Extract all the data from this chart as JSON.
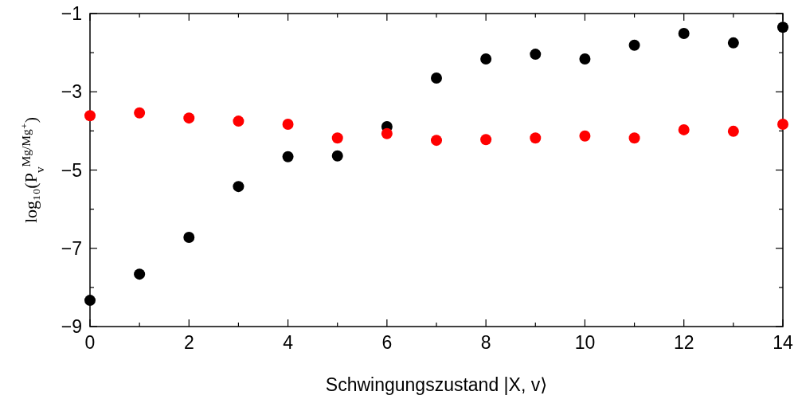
{
  "chart_data": {
    "type": "scatter",
    "xlabel": "Schwingungszustand |X, v⟩",
    "ylabel": "log₁₀(P$_{v}$$^{Mg/Mg⁺}$)",
    "x": [
      0,
      1,
      2,
      3,
      4,
      5,
      6,
      7,
      8,
      9,
      10,
      11,
      12,
      13,
      14
    ],
    "series": [
      {
        "color": "#000000",
        "values": [
          -8.33,
          -7.66,
          -6.72,
          -5.42,
          -4.66,
          -4.64,
          -3.89,
          -2.65,
          -2.16,
          -2.04,
          -2.16,
          -1.81,
          -1.51,
          -1.75,
          -1.35
        ]
      },
      {
        "color": "#ff0000",
        "values": [
          -3.61,
          -3.54,
          -3.67,
          -3.75,
          -3.83,
          -4.18,
          -4.07,
          -4.24,
          -4.22,
          -4.18,
          -4.13,
          -4.18,
          -3.97,
          -4.01,
          -3.83
        ]
      }
    ],
    "marker": "circle",
    "grid": false,
    "xlim": [
      0,
      14
    ],
    "xticks": [
      0,
      {
        "value": 1,
        "label": null
      },
      2,
      {
        "value": 3,
        "label": null
      },
      4,
      {
        "value": 5,
        "label": null
      },
      6,
      {
        "value": 7,
        "label": null
      },
      8,
      {
        "value": 9,
        "label": null
      },
      10,
      {
        "value": 11,
        "label": null
      },
      12,
      {
        "value": 13,
        "label": null
      },
      14
    ],
    "ylim": [
      -9,
      -1
    ],
    "yticks": [
      -9,
      {
        "value": -8,
        "label": null
      },
      -7,
      {
        "value": -6,
        "label": null
      },
      -5,
      {
        "value": -4,
        "label": null
      },
      -3,
      {
        "value": -2,
        "label": null
      },
      -1
    ]
  }
}
